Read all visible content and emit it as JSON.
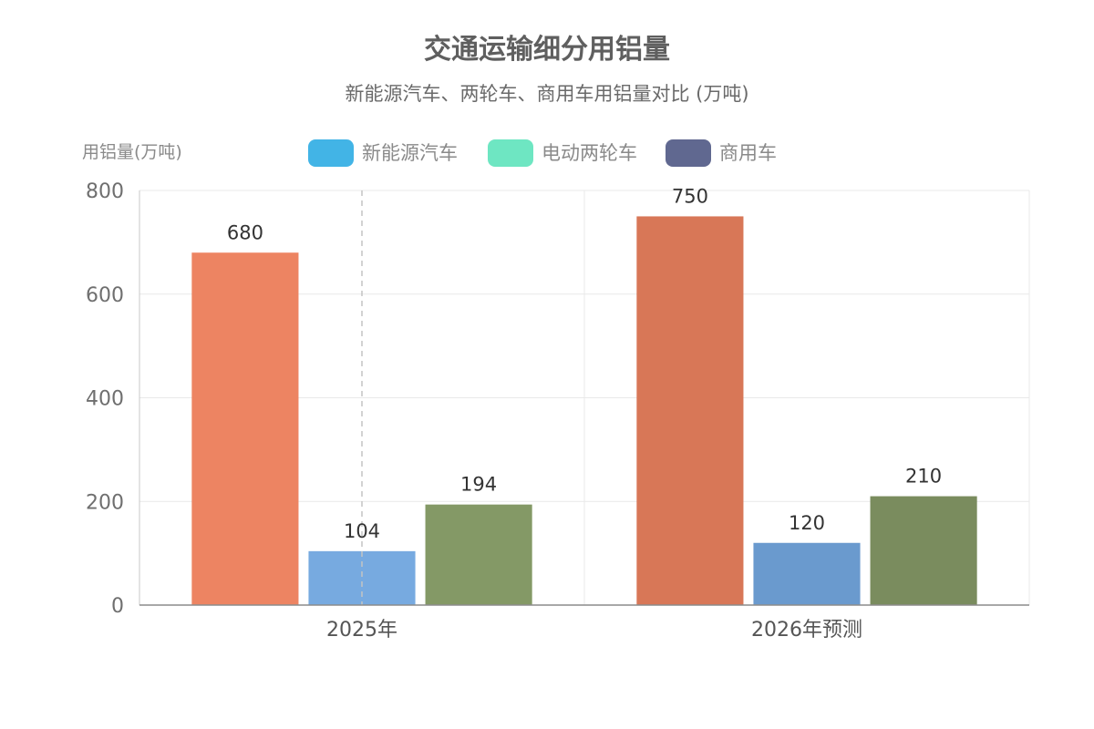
{
  "chart_data": {
    "type": "bar",
    "title": "交通运输细分用铝量",
    "subtitle": "新能源汽车、两轮车、商用车用铝量对比 (万吨)",
    "ylabel": "用铝量(万吨)",
    "ylim": [
      0,
      800
    ],
    "yticks": [
      0,
      200,
      400,
      600,
      800
    ],
    "grid": true,
    "legend_position": "top",
    "categories": [
      "2025年",
      "2026年预测"
    ],
    "legend": [
      {
        "name": "新能源汽车",
        "color": "#42b4e6"
      },
      {
        "name": "电动两轮车",
        "color": "#6ee6c2"
      },
      {
        "name": "商用车",
        "color": "#606890"
      }
    ],
    "series": [
      {
        "values": [
          680,
          750
        ],
        "colors": [
          "#ed8462",
          "#d87757"
        ]
      },
      {
        "values": [
          104,
          120
        ],
        "colors": [
          "#77aae0",
          "#6a9ace"
        ]
      },
      {
        "values": [
          194,
          210
        ],
        "colors": [
          "#849966",
          "#7a8c5e"
        ]
      }
    ]
  }
}
